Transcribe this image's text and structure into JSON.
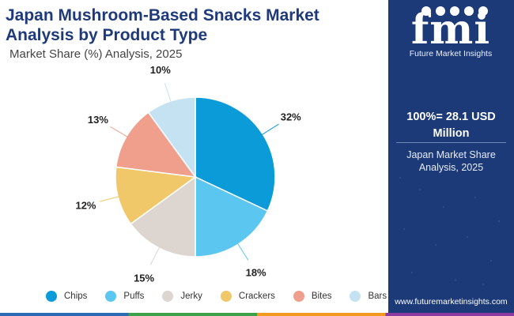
{
  "title": "Japan Mushroom-Based Snacks Market Analysis by Product Type",
  "subtitle": "Market Share (%) Analysis, 2025",
  "chart_data": {
    "type": "pie",
    "title": "Japan Mushroom-Based Snacks Market Analysis by Product Type",
    "subtitle": "Market Share (%) Analysis, 2025",
    "unit": "%",
    "legend_position": "bottom",
    "categories": [
      "Chips",
      "Puffs",
      "Jerky",
      "Crackers",
      "Bites",
      "Bars"
    ],
    "values": [
      32,
      18,
      15,
      12,
      13,
      10
    ],
    "labels": [
      "32%",
      "18%",
      "15%",
      "12%",
      "13%",
      "10%"
    ],
    "colors": [
      "#0b9bd8",
      "#5bc6f0",
      "#ddd6d0",
      "#f0c869",
      "#ef9f8c",
      "#c5e2f2"
    ]
  },
  "panel": {
    "logo_text": "fmi",
    "logo_subtitle": "Future Market Insights",
    "total_label": "100%= 28.1 USD Million",
    "region_label": "Japan Market Share Analysis, 2025",
    "website": "www.futuremarketinsights.com",
    "background": "#1d3a78"
  }
}
